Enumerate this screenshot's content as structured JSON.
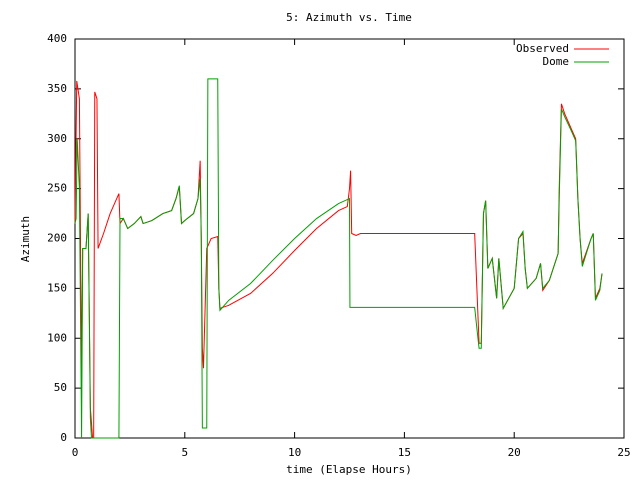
{
  "chart_data": {
    "type": "line",
    "title": "5: Azimuth vs. Time",
    "x_label": "time (Elapse Hours)",
    "y_label": "Azimuth",
    "xlim": [
      0,
      25
    ],
    "xticks": [
      0,
      5,
      10,
      15,
      20,
      25
    ],
    "ylim": [
      0,
      400
    ],
    "yticks": [
      0,
      50,
      100,
      150,
      200,
      250,
      300,
      350,
      400
    ],
    "legend": "top-right",
    "series": [
      {
        "name": "Observed",
        "color": "#ff0000",
        "x": [
          0,
          0.08,
          0.2,
          0.3,
          0.35,
          0.5,
          0.6,
          0.7,
          0.8,
          0.85,
          0.9,
          1.0,
          1.05,
          1.3,
          1.6,
          1.9,
          2.0,
          2.05,
          2.2,
          2.4,
          2.7,
          3.0,
          3.1,
          3.5,
          4.0,
          4.4,
          4.6,
          4.75,
          4.85,
          5.0,
          5.4,
          5.6,
          5.7,
          5.75,
          5.8,
          5.85,
          6.0,
          6.2,
          6.5,
          6.55,
          6.6,
          7,
          8,
          9,
          10,
          11,
          12,
          12.4,
          12.5,
          12.55,
          12.6,
          12.8,
          13,
          18.2,
          18.3,
          18.4,
          18.5,
          18.6,
          18.7,
          18.8,
          19.0,
          19.2,
          19.3,
          19.5,
          20.0,
          20.2,
          20.4,
          20.5,
          20.6,
          21.0,
          21.2,
          21.3,
          21.6,
          22.0,
          22.05,
          22.15,
          22.3,
          22.6,
          22.8,
          22.9,
          23.0,
          23.1,
          23.5,
          23.6,
          23.7,
          23.9,
          24.0
        ],
        "values": [
          215,
          358,
          340,
          60,
          190,
          190,
          225,
          30,
          0,
          0,
          347,
          340,
          190,
          205,
          225,
          240,
          245,
          215,
          220,
          210,
          215,
          222,
          215,
          218,
          225,
          228,
          240,
          252,
          215,
          218,
          225,
          240,
          278,
          200,
          90,
          70,
          190,
          200,
          202,
          150,
          130,
          133,
          145,
          165,
          188,
          210,
          228,
          232,
          250,
          268,
          205,
          203,
          205,
          205,
          150,
          95,
          95,
          225,
          238,
          170,
          180,
          140,
          180,
          130,
          150,
          200,
          205,
          170,
          150,
          160,
          175,
          148,
          158,
          185,
          250,
          335,
          325,
          310,
          300,
          240,
          200,
          175,
          200,
          205,
          140,
          150,
          165
        ]
      },
      {
        "name": "Dome",
        "color": "#00a000",
        "x": [
          0,
          0.05,
          0.1,
          0.2,
          0.3,
          0.35,
          0.5,
          0.6,
          0.7,
          0.75,
          2.0,
          2.05,
          2.2,
          2.4,
          2.7,
          3.0,
          3.1,
          3.5,
          4.0,
          4.4,
          4.6,
          4.75,
          4.85,
          5.0,
          5.4,
          5.6,
          5.7,
          5.75,
          5.8,
          6.0,
          6.05,
          6.5,
          6.55,
          6.6,
          7,
          8,
          9,
          10,
          11,
          12,
          12.5,
          12.52,
          18.2,
          18.3,
          18.4,
          18.5,
          18.6,
          18.7,
          18.8,
          19.0,
          19.2,
          19.3,
          19.5,
          20.0,
          20.2,
          20.4,
          20.5,
          20.6,
          21.0,
          21.2,
          21.3,
          21.6,
          22.0,
          22.05,
          22.15,
          22.3,
          22.6,
          22.8,
          22.9,
          23.0,
          23.1,
          23.5,
          23.6,
          23.7,
          23.9,
          24.0
        ],
        "values": [
          215,
          220,
          300,
          250,
          0,
          190,
          190,
          225,
          20,
          0,
          0,
          220,
          220,
          210,
          215,
          222,
          215,
          218,
          225,
          228,
          240,
          253,
          215,
          218,
          225,
          240,
          260,
          200,
          10,
          10,
          360,
          360,
          150,
          128,
          138,
          155,
          178,
          200,
          220,
          235,
          240,
          131,
          131,
          110,
          90,
          90,
          225,
          238,
          170,
          180,
          140,
          180,
          130,
          150,
          200,
          207,
          170,
          150,
          160,
          175,
          150,
          158,
          185,
          240,
          330,
          322,
          308,
          298,
          240,
          200,
          172,
          200,
          205,
          138,
          148,
          165
        ]
      }
    ]
  }
}
